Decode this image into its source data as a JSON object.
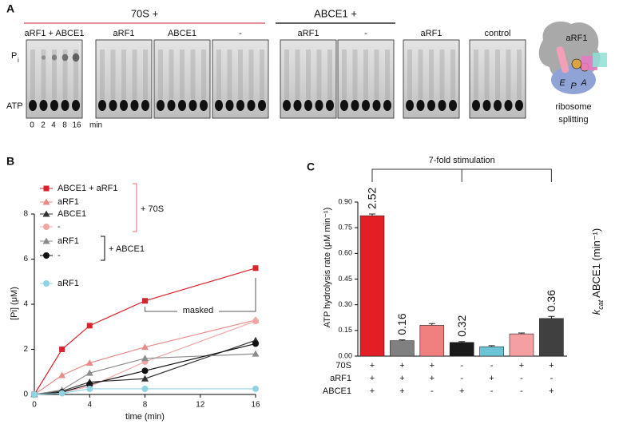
{
  "panel_a": {
    "label": "A",
    "groups": [
      {
        "text": "70S +",
        "color": "#d24a5a"
      },
      {
        "text": "ABCE1 +",
        "color": "#000000"
      }
    ],
    "gel_labels": [
      {
        "text": "aRF1 + ABCE1",
        "color": "#e0202a"
      },
      {
        "text": "aRF1"
      },
      {
        "text": "ABCE1"
      },
      {
        "text": "-"
      },
      {
        "text": "aRF1"
      },
      {
        "text": "-"
      },
      {
        "text": "aRF1"
      },
      {
        "text": "control"
      }
    ],
    "row_labels": [
      {
        "text": "P",
        "sub": "i"
      },
      {
        "text": "ATP"
      }
    ],
    "lane_labels": [
      "0",
      "2",
      "4",
      "8",
      "16",
      "min"
    ],
    "diagram": {
      "labels": [
        "aRF1",
        "E",
        "P",
        "A"
      ],
      "caption": [
        "ribosome",
        "splitting"
      ]
    }
  },
  "chart_data": [
    {
      "type": "line",
      "panel": "B",
      "x_label": "time (min)",
      "y_label": "[Pi] (μM)",
      "x": [
        0,
        2,
        4,
        8,
        16
      ],
      "xlim": [
        0,
        16
      ],
      "xticks": [
        0,
        4,
        8,
        12,
        16
      ],
      "ylim": [
        0,
        8
      ],
      "yticks": [
        0,
        2,
        4,
        6,
        8
      ],
      "series": [
        {
          "name": "ABCE1 + aRF1",
          "color": "#d9232d",
          "marker": "square",
          "values": [
            0,
            2.0,
            3.05,
            4.15,
            5.6
          ]
        },
        {
          "name": "aRF1",
          "color": "#e88a8a",
          "marker": "triangle",
          "values": [
            0,
            0.85,
            1.4,
            2.1,
            3.3
          ]
        },
        {
          "name": "ABCE1",
          "color": "#333333",
          "marker": "triangle",
          "values": [
            0,
            0.15,
            0.55,
            0.7,
            2.4
          ]
        },
        {
          "name": "-",
          "color": "#f2a7a7",
          "marker": "circle",
          "values": [
            0,
            0.1,
            0.35,
            1.45,
            3.25
          ]
        },
        {
          "name": "aRF1",
          "color": "#8c8c8c",
          "marker": "triangle",
          "values": [
            0,
            0.2,
            0.95,
            1.6,
            1.8
          ]
        },
        {
          "name": "-",
          "color": "#111111",
          "marker": "circle",
          "values": [
            0,
            0.1,
            0.45,
            1.05,
            2.25
          ]
        },
        {
          "name": "aRF1",
          "color": "#8fd3e3",
          "marker": "circle",
          "values": [
            0,
            0.05,
            0.25,
            0.25,
            0.25
          ]
        }
      ],
      "legend_groups": [
        {
          "text": "+ 70S",
          "color": "#d9707a"
        },
        {
          "text": "+ ABCE1",
          "color": "#000000"
        }
      ],
      "annotation": "masked"
    },
    {
      "type": "bar",
      "panel": "C",
      "title": "7-fold stimulation",
      "y_label": "ATP hydrolysis rate (μM min⁻¹)",
      "y2_label": {
        "symbol": "k",
        "sub": "cat",
        "text": " ABCE1 (min⁻¹)"
      },
      "categories": [
        null,
        null,
        null,
        null,
        null,
        null,
        null
      ],
      "values": [
        0.82,
        0.09,
        0.18,
        0.08,
        0.055,
        0.13,
        0.22
      ],
      "errors": [
        0.01,
        0.005,
        0.01,
        0.005,
        0.006,
        0.005,
        0.012
      ],
      "colors": [
        "#e31e24",
        "#808080",
        "#f08080",
        "#1a1a1a",
        "#6cc5d6",
        "#f4a0a0",
        "#404040"
      ],
      "kcat": [
        2.52,
        0.16,
        null,
        0.32,
        null,
        null,
        0.36
      ],
      "ylim": [
        0,
        0.9
      ],
      "yticks": [
        {
          "value": 0,
          "label": "0.00"
        },
        {
          "value": 0.15,
          "label": "0.15"
        },
        {
          "value": 0.3,
          "label": "0.30"
        },
        {
          "value": 0.45,
          "label": "0.45"
        },
        {
          "value": 0.6,
          "label": "0.60"
        },
        {
          "value": 0.75,
          "label": "0.75"
        },
        {
          "value": 0.9,
          "label": "0.90"
        }
      ],
      "conditions": [
        {
          "name": "70S",
          "signs": [
            "+",
            "+",
            "+",
            "-",
            "-",
            "+",
            "+"
          ]
        },
        {
          "name": "aRF1",
          "signs": [
            "+",
            "+",
            "+",
            "-",
            "+",
            "-",
            "-"
          ]
        },
        {
          "name": "ABCE1",
          "signs": [
            "+",
            "+",
            "-",
            "+",
            "-",
            "-",
            "+"
          ]
        }
      ]
    }
  ]
}
